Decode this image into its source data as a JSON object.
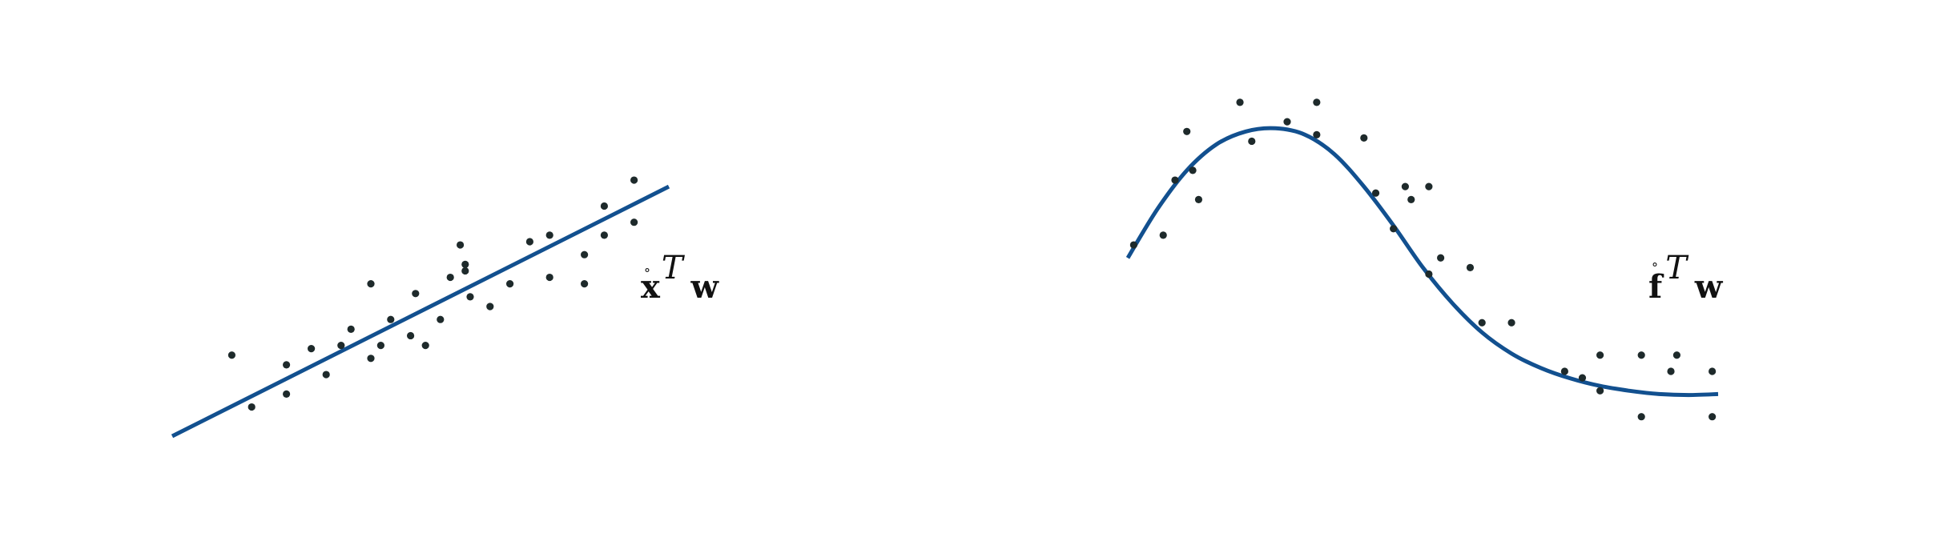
{
  "colors": {
    "curve": "#12508f",
    "points": "#1e2a2b",
    "background": "#ffffff"
  },
  "chart_data": [
    {
      "type": "scatter",
      "fit": "linear",
      "title": "",
      "xlabel": "",
      "ylabel": "",
      "xlim": [
        0,
        10
      ],
      "ylim": [
        0,
        10
      ],
      "grid": false,
      "label": {
        "base": "x",
        "accent": "°",
        "sup": "T",
        "tail": "w"
      },
      "line": {
        "x": [
          0,
          10
        ],
        "y": [
          0,
          7.7
        ]
      },
      "points": [
        {
          "x": 1.2,
          "y": 2.5
        },
        {
          "x": 1.6,
          "y": 0.9
        },
        {
          "x": 2.3,
          "y": 1.3
        },
        {
          "x": 2.3,
          "y": 2.2
        },
        {
          "x": 2.8,
          "y": 2.7
        },
        {
          "x": 3.1,
          "y": 1.9
        },
        {
          "x": 3.4,
          "y": 2.8
        },
        {
          "x": 3.6,
          "y": 3.3
        },
        {
          "x": 4.0,
          "y": 2.4
        },
        {
          "x": 4.0,
          "y": 4.7
        },
        {
          "x": 4.2,
          "y": 2.8
        },
        {
          "x": 4.4,
          "y": 3.6
        },
        {
          "x": 4.8,
          "y": 3.1
        },
        {
          "x": 4.9,
          "y": 4.4
        },
        {
          "x": 5.1,
          "y": 2.8
        },
        {
          "x": 5.4,
          "y": 3.6
        },
        {
          "x": 5.6,
          "y": 4.9
        },
        {
          "x": 5.8,
          "y": 5.9
        },
        {
          "x": 5.9,
          "y": 5.1
        },
        {
          "x": 5.9,
          "y": 5.3
        },
        {
          "x": 6.0,
          "y": 4.3
        },
        {
          "x": 6.4,
          "y": 4.0
        },
        {
          "x": 6.8,
          "y": 4.7
        },
        {
          "x": 7.2,
          "y": 6.0
        },
        {
          "x": 7.6,
          "y": 6.2
        },
        {
          "x": 7.6,
          "y": 4.9
        },
        {
          "x": 8.3,
          "y": 4.7
        },
        {
          "x": 8.3,
          "y": 5.6
        },
        {
          "x": 8.7,
          "y": 6.2
        },
        {
          "x": 8.7,
          "y": 7.1
        },
        {
          "x": 9.3,
          "y": 6.6
        },
        {
          "x": 9.3,
          "y": 7.9
        }
      ]
    },
    {
      "type": "scatter",
      "fit": "nonlinear",
      "title": "",
      "xlabel": "",
      "ylabel": "",
      "xlim": [
        0,
        10
      ],
      "ylim": [
        0,
        10
      ],
      "grid": false,
      "label": {
        "base": "f",
        "accent": "°",
        "sup": "T",
        "tail": "w"
      },
      "curve": {
        "x": [
          0,
          0.5,
          1.0,
          1.5,
          2.0,
          2.5,
          3.0,
          3.5,
          4.0,
          4.5,
          5.0,
          5.5,
          6.0,
          6.5,
          7.0,
          7.5,
          8.0,
          8.5,
          9.0,
          9.5,
          10.0
        ],
        "y": [
          5.5,
          7.0,
          8.2,
          9.0,
          9.4,
          9.5,
          9.3,
          8.7,
          7.7,
          6.5,
          5.2,
          4.1,
          3.2,
          2.55,
          2.1,
          1.78,
          1.55,
          1.4,
          1.3,
          1.27,
          1.3
        ]
      },
      "points": [
        {
          "x": 0.1,
          "y": 5.9
        },
        {
          "x": 0.6,
          "y": 6.2
        },
        {
          "x": 0.8,
          "y": 7.9
        },
        {
          "x": 1.0,
          "y": 9.4
        },
        {
          "x": 1.1,
          "y": 8.2
        },
        {
          "x": 1.2,
          "y": 7.3
        },
        {
          "x": 1.9,
          "y": 10.3
        },
        {
          "x": 2.1,
          "y": 9.1
        },
        {
          "x": 2.7,
          "y": 9.7
        },
        {
          "x": 3.2,
          "y": 9.3
        },
        {
          "x": 3.2,
          "y": 10.3
        },
        {
          "x": 4.0,
          "y": 9.2
        },
        {
          "x": 4.2,
          "y": 7.5
        },
        {
          "x": 4.5,
          "y": 6.4
        },
        {
          "x": 4.7,
          "y": 7.7
        },
        {
          "x": 4.8,
          "y": 7.3
        },
        {
          "x": 5.1,
          "y": 5.0
        },
        {
          "x": 5.1,
          "y": 7.7
        },
        {
          "x": 5.3,
          "y": 5.5
        },
        {
          "x": 5.8,
          "y": 5.2
        },
        {
          "x": 6.0,
          "y": 3.5
        },
        {
          "x": 6.5,
          "y": 3.5
        },
        {
          "x": 7.4,
          "y": 2.0
        },
        {
          "x": 7.7,
          "y": 1.8
        },
        {
          "x": 8.0,
          "y": 2.5
        },
        {
          "x": 8.0,
          "y": 1.4
        },
        {
          "x": 8.7,
          "y": 2.5
        },
        {
          "x": 8.7,
          "y": 0.6
        },
        {
          "x": 9.2,
          "y": 2.0
        },
        {
          "x": 9.3,
          "y": 2.5
        },
        {
          "x": 9.9,
          "y": 2.0
        },
        {
          "x": 9.9,
          "y": 0.6
        }
      ]
    }
  ]
}
